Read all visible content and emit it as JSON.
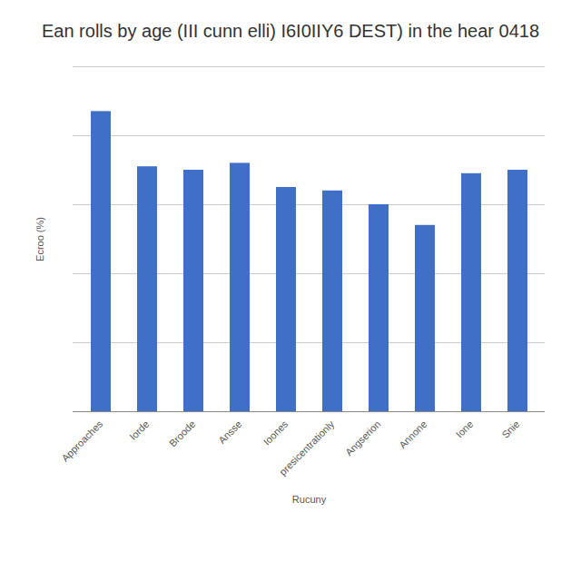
{
  "chart_data": {
    "type": "bar",
    "title": "Ean rolls by age (III cunn elli) I6I0IIY6 DEST) in the hear 0418",
    "x_label": "Rucuny",
    "y_label": "Ecroo (%)",
    "categories": [
      "Approaches",
      "Iorde",
      "Broode",
      "Ansse",
      "Ioones",
      "presicentrationly",
      "Angserion",
      "Annone",
      "Ione",
      "Snie"
    ],
    "values": [
      87,
      71,
      70,
      72,
      65,
      64,
      60,
      54,
      69,
      70
    ],
    "color": "#3f6fc6",
    "ylim": [
      0,
      100
    ],
    "yticks": [
      0,
      20,
      40,
      60,
      80,
      100
    ],
    "grid": true,
    "tick_labels": "x"
  }
}
